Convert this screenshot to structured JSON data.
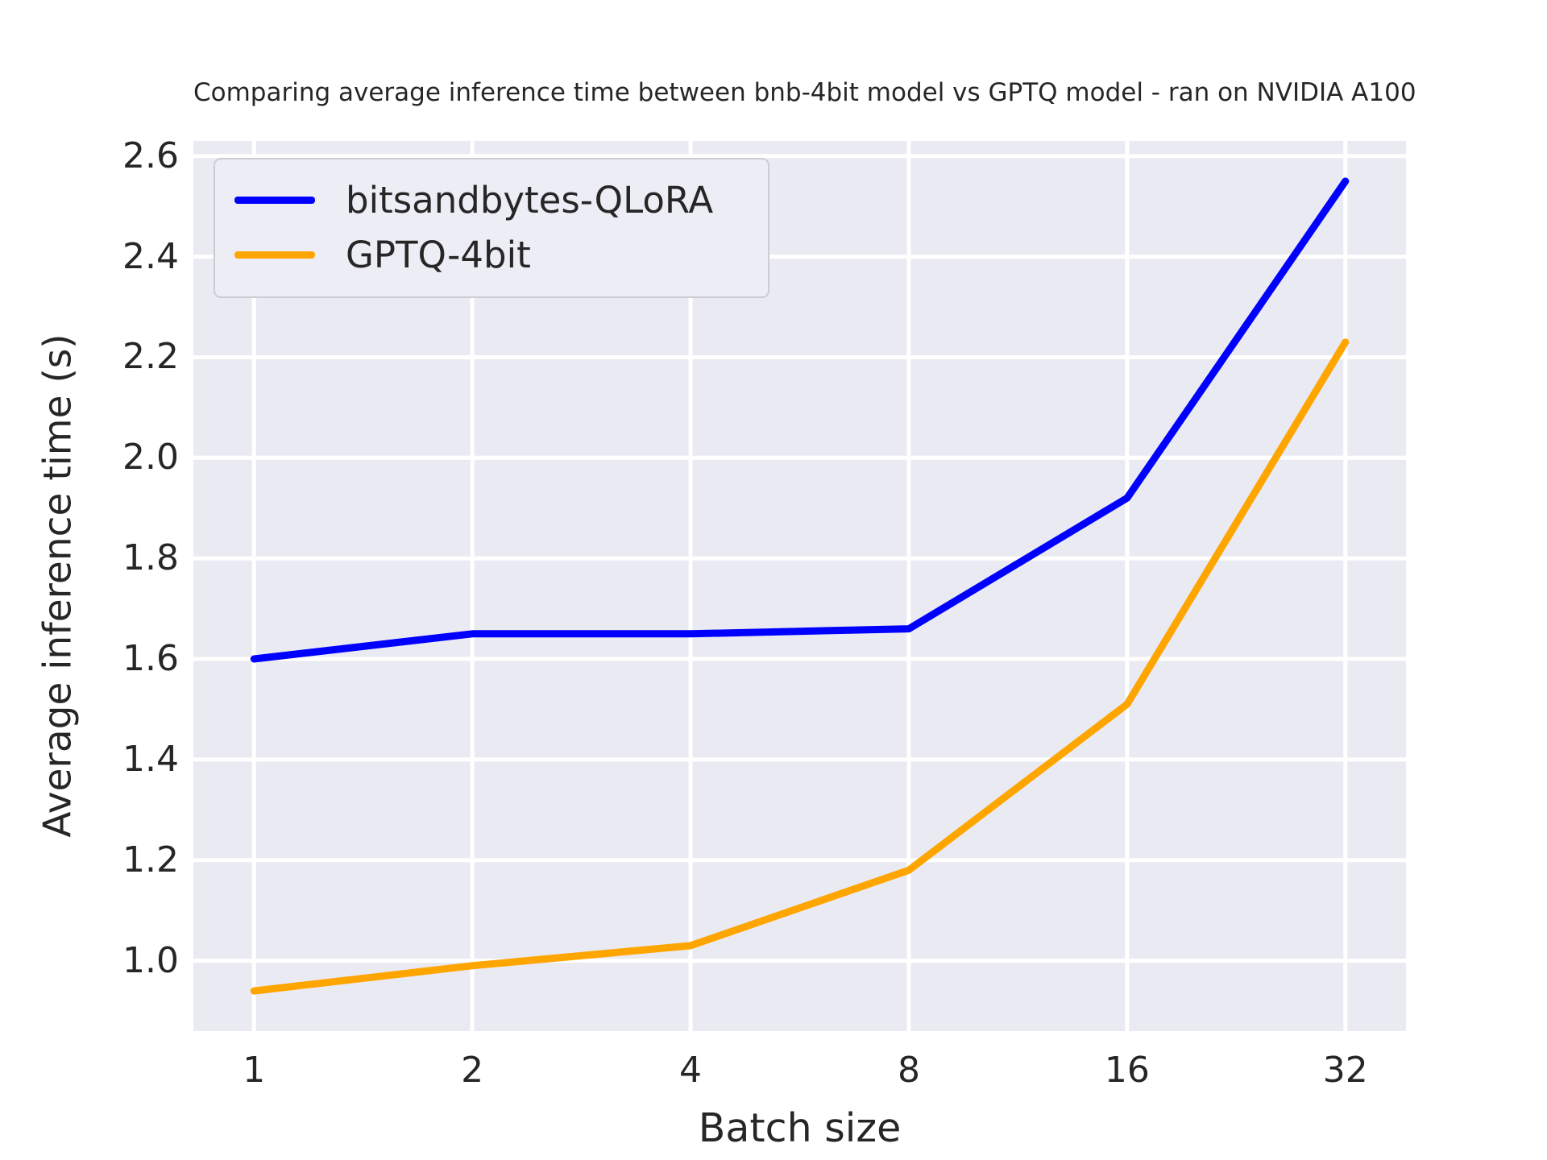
{
  "chart_data": {
    "type": "line",
    "title": "Comparing average inference time between bnb-4bit model vs GPTQ model - ran on NVIDIA A100",
    "xlabel": "Batch size",
    "ylabel": "Average inference time (s)",
    "x_categories": [
      "1",
      "2",
      "4",
      "8",
      "16",
      "32"
    ],
    "series": [
      {
        "name": "bitsandbytes-QLoRA",
        "color": "#0000ff",
        "values": [
          1.6,
          1.65,
          1.65,
          1.66,
          1.92,
          2.55
        ]
      },
      {
        "name": "GPTQ-4bit",
        "color": "#ffa500",
        "values": [
          0.94,
          0.99,
          1.03,
          1.18,
          1.51,
          2.23
        ]
      }
    ],
    "yticks": [
      1.0,
      1.2,
      1.4,
      1.6,
      1.8,
      2.0,
      2.2,
      2.4,
      2.6
    ],
    "ytick_labels": [
      "1.0",
      "1.2",
      "1.4",
      "1.6",
      "1.8",
      "2.0",
      "2.2",
      "2.4",
      "2.6"
    ],
    "ylim": [
      0.86,
      2.63
    ],
    "x_scale": "log2-even-spacing",
    "grid": true,
    "legend_position": "upper left",
    "colors": {
      "plot_bg": "#eaeaf2",
      "figure_bg": "#ffffff",
      "grid": "#ffffff",
      "text": "#262626"
    }
  }
}
